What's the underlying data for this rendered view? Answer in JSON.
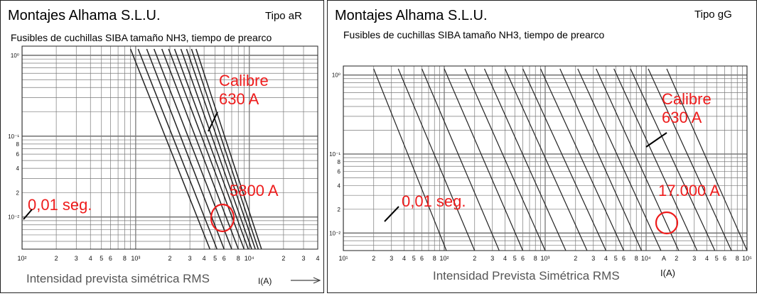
{
  "colors": {
    "curve": "#222222",
    "grid": "#7a7a7a",
    "annotation": "#ee1c1c",
    "frame": "#222222"
  },
  "panels": [
    {
      "title": "Montajes Alhama S.L.U.",
      "type_label": "Tipo aR",
      "subtitle": "Fusibles de cuchillas SIBA tamaño NH3, tiempo de prearco",
      "x_axis_label": "Intensidad prevista simétrica RMS",
      "current_axis_label": "I(A)",
      "annotations": {
        "rating_line1": "Calibre",
        "rating_line2": "630 A",
        "time_label": "0,01 seg.",
        "current_label": "5800 A"
      }
    },
    {
      "title": "Montajes Alhama S.L.U.",
      "type_label": "Tipo gG",
      "subtitle": "Fusibles de cuchillas SIBA tamaño NH3, tiempo de prearco",
      "x_axis_label": "Intensidad Prevista Simétrica RMS",
      "current_axis_label": "I(A)",
      "annotations": {
        "rating_line1": "Calibre",
        "rating_line2": "630 A",
        "time_label": "0,01 seg.",
        "current_label": "17.000 A"
      }
    }
  ],
  "chart_data": [
    {
      "type": "line",
      "title": "Fusibles de cuchillas SIBA tamaño NH3, tiempo de prearco",
      "fuse_type": "aR",
      "x_scale": "log",
      "y_scale": "log",
      "xlabel": "Intensidad prevista simétrica RMS",
      "xlim": [
        100,
        40000
      ],
      "ylim": [
        0.004,
        1.3
      ],
      "x_tick_labels": [
        "10²",
        "2",
        "3",
        "4",
        "5",
        "6",
        "8",
        "10³",
        "2",
        "3",
        "4",
        "5",
        "6",
        "8",
        "10⁴",
        "2",
        "3",
        "4"
      ],
      "x_tick_values": [
        100,
        200,
        300,
        400,
        500,
        600,
        800,
        1000,
        2000,
        3000,
        4000,
        5000,
        6000,
        8000,
        10000,
        20000,
        30000,
        40000
      ],
      "y_tick_labels": [
        "10⁰",
        "10⁻¹",
        "8",
        "6",
        "4",
        "2",
        "10⁻²"
      ],
      "y_tick_values": [
        1,
        0.1,
        0.08,
        0.06,
        0.04,
        0.02,
        0.01
      ],
      "grid": true,
      "series": [
        {
          "x": [
            900,
            4500
          ],
          "y": [
            1.2,
            0.004
          ]
        },
        {
          "x": [
            1050,
            5200
          ],
          "y": [
            1.2,
            0.004
          ]
        },
        {
          "x": [
            1250,
            6000
          ],
          "y": [
            1.2,
            0.004
          ]
        },
        {
          "x": [
            1450,
            7000
          ],
          "y": [
            1.2,
            0.004
          ]
        },
        {
          "x": [
            1700,
            8000
          ],
          "y": [
            1.2,
            0.004
          ]
        },
        {
          "x": [
            1950,
            9000
          ],
          "y": [
            1.2,
            0.004
          ]
        },
        {
          "x": [
            2200,
            9800
          ],
          "y": [
            1.2,
            0.004
          ]
        },
        {
          "x": [
            2500,
            10500
          ],
          "y": [
            1.2,
            0.004
          ]
        },
        {
          "x": [
            2800,
            11300
          ],
          "y": [
            1.2,
            0.004
          ]
        },
        {
          "x": [
            3100,
            12000
          ],
          "y": [
            1.2,
            0.004
          ]
        },
        {
          "x": [
            3400,
            12800
          ],
          "y": [
            1.2,
            0.004
          ]
        }
      ],
      "highlight": {
        "rating_A": 630,
        "current_A": 5800,
        "time_s": 0.01
      }
    },
    {
      "type": "line",
      "title": "Fusibles de cuchillas SIBA tamaño NH3, tiempo de prearco",
      "fuse_type": "gG",
      "x_scale": "log",
      "y_scale": "log",
      "xlabel": "Intensidad Prevista Simétrica RMS",
      "xlim": [
        10,
        100000
      ],
      "ylim": [
        0.006,
        1.3
      ],
      "x_tick_labels": [
        "10¹",
        "2",
        "3",
        "4",
        "5",
        "6",
        "8",
        "10²",
        "2",
        "3",
        "4",
        "5",
        "6",
        "8",
        "10³",
        "2",
        "3",
        "4",
        "5",
        "6",
        "8",
        "10⁴",
        "A",
        "2",
        "3",
        "4",
        "5",
        "6",
        "8",
        "10⁵"
      ],
      "x_tick_values": [
        10,
        20,
        30,
        40,
        50,
        60,
        80,
        100,
        200,
        300,
        400,
        500,
        600,
        800,
        1000,
        2000,
        3000,
        4000,
        5000,
        6000,
        8000,
        10000,
        15000,
        20000,
        30000,
        40000,
        50000,
        60000,
        80000,
        100000
      ],
      "y_tick_labels": [
        "10⁰",
        "10⁻¹",
        "8",
        "6",
        "4",
        "2",
        "10⁻²"
      ],
      "y_tick_values": [
        1,
        0.1,
        0.08,
        0.06,
        0.04,
        0.02,
        0.01
      ],
      "grid": true,
      "series": [
        {
          "x": [
            20,
            105
          ],
          "y": [
            1.2,
            0.006
          ]
        },
        {
          "x": [
            35,
            200
          ],
          "y": [
            1.2,
            0.006
          ]
        },
        {
          "x": [
            60,
            350
          ],
          "y": [
            1.2,
            0.006
          ]
        },
        {
          "x": [
            100,
            600
          ],
          "y": [
            1.2,
            0.006
          ]
        },
        {
          "x": [
            160,
            1000
          ],
          "y": [
            1.2,
            0.006
          ]
        },
        {
          "x": [
            250,
            1600
          ],
          "y": [
            1.2,
            0.006
          ]
        },
        {
          "x": [
            400,
            2600
          ],
          "y": [
            1.2,
            0.006
          ]
        },
        {
          "x": [
            600,
            4000
          ],
          "y": [
            1.2,
            0.006
          ]
        },
        {
          "x": [
            900,
            6000
          ],
          "y": [
            1.2,
            0.006
          ]
        },
        {
          "x": [
            1400,
            9000
          ],
          "y": [
            1.2,
            0.006
          ]
        },
        {
          "x": [
            2100,
            14000
          ],
          "y": [
            1.2,
            0.006
          ]
        },
        {
          "x": [
            3200,
            21000
          ],
          "y": [
            1.2,
            0.006
          ]
        },
        {
          "x": [
            4800,
            32000
          ],
          "y": [
            1.2,
            0.006
          ]
        },
        {
          "x": [
            7000,
            48000
          ],
          "y": [
            1.2,
            0.006
          ]
        },
        {
          "x": [
            10500,
            70000
          ],
          "y": [
            1.2,
            0.006
          ]
        },
        {
          "x": [
            16000,
            100000
          ],
          "y": [
            1.2,
            0.006
          ]
        }
      ],
      "highlight": {
        "rating_A": 630,
        "current_A": 17000,
        "time_s": 0.01
      }
    }
  ]
}
